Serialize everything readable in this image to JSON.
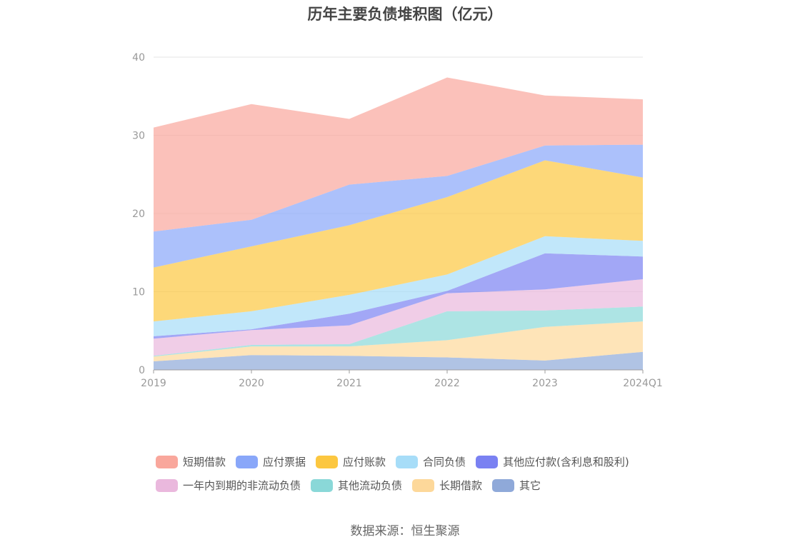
{
  "chart_data": {
    "type": "area",
    "stacked": true,
    "title": "历年主要负债堆积图（亿元）",
    "categories": [
      "2019",
      "2020",
      "2021",
      "2022",
      "2023",
      "2024Q1"
    ],
    "ylim": [
      0,
      40
    ],
    "yticks": [
      "0",
      "10",
      "20",
      "30",
      "40"
    ],
    "grid": true,
    "legend_position": "bottom",
    "series": [
      {
        "name": "其它",
        "color": "#8FA9D9",
        "values": [
          1.1,
          1.9,
          1.8,
          1.6,
          1.2,
          2.3
        ]
      },
      {
        "name": "长期借款",
        "color": "#FDD89A",
        "values": [
          0.6,
          1.1,
          1.2,
          2.2,
          4.3,
          3.9
        ]
      },
      {
        "name": "其他流动负债",
        "color": "#8AD8D8",
        "values": [
          0.1,
          0.2,
          0.3,
          3.7,
          2.1,
          1.9
        ]
      },
      {
        "name": "一年内到期的非流动负债",
        "color": "#EAB8DD",
        "values": [
          2.2,
          1.9,
          2.4,
          2.3,
          2.7,
          3.5
        ]
      },
      {
        "name": "其他应付款(含利息和股利)",
        "color": "#7A81F2",
        "values": [
          0.3,
          0.1,
          1.5,
          0.3,
          4.6,
          2.9
        ]
      },
      {
        "name": "合同负债",
        "color": "#A7DDF8",
        "values": [
          1.9,
          2.3,
          2.4,
          2.1,
          2.2,
          2.0
        ]
      },
      {
        "name": "应付账款",
        "color": "#FCC740",
        "values": [
          6.9,
          8.3,
          8.9,
          9.9,
          9.7,
          8.1
        ]
      },
      {
        "name": "应付票据",
        "color": "#89A7F9",
        "values": [
          4.6,
          3.4,
          5.2,
          2.7,
          1.9,
          4.2
        ]
      },
      {
        "name": "短期借款",
        "color": "#F9A79C",
        "values": [
          13.3,
          14.8,
          8.4,
          12.6,
          6.4,
          5.8
        ]
      }
    ],
    "legend_rows": [
      [
        "短期借款",
        "应付票据",
        "应付账款",
        "合同负债",
        "其他应付款(含利息和股利)"
      ],
      [
        "一年内到期的非流动负债",
        "其他流动负债",
        "长期借款",
        "其它"
      ]
    ]
  },
  "source_note": "数据来源：恒生聚源"
}
